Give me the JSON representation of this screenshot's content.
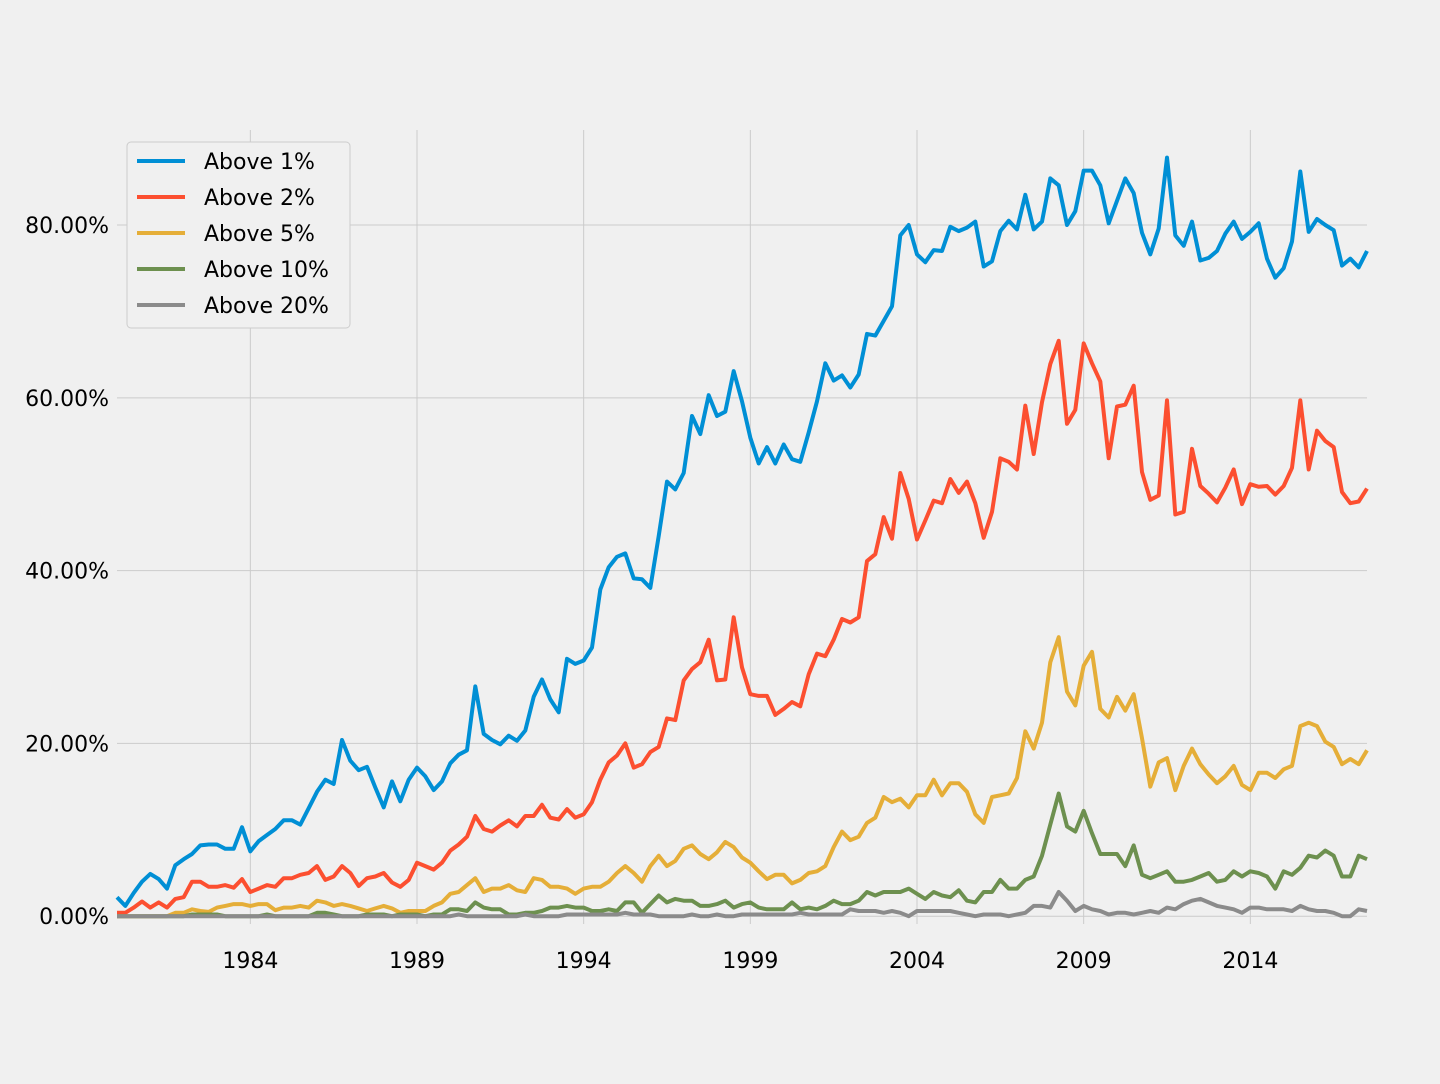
{
  "chart_data": {
    "type": "line",
    "title": "",
    "xlabel": "",
    "ylabel": "",
    "x_ticks": [
      "1984",
      "1989",
      "1994",
      "1999",
      "2004",
      "2009",
      "2014"
    ],
    "y_ticks": [
      "0.00%",
      "20.00%",
      "40.00%",
      "60.00%",
      "80.00%"
    ],
    "ylim": [
      -0.9,
      91
    ],
    "xlim": [
      1980,
      2017.5
    ],
    "x_start": 1980,
    "x_step": 0.25,
    "grid": true,
    "legend_position": "top-left",
    "series": [
      {
        "name": "Above 1%",
        "color": "#008fd5",
        "values": [
          2.2,
          1.2,
          2.7,
          4.0,
          4.9,
          4.3,
          3.2,
          5.9,
          6.6,
          7.2,
          8.2,
          8.3,
          8.3,
          7.8,
          7.8,
          10.3,
          7.5,
          8.7,
          9.4,
          10.1,
          11.1,
          11.1,
          10.6,
          12.5,
          14.4,
          15.8,
          15.3,
          20.4,
          18.0,
          16.9,
          17.3,
          14.9,
          12.6,
          15.6,
          13.3,
          15.8,
          17.2,
          16.2,
          14.6,
          15.6,
          17.7,
          18.7,
          19.2,
          26.6,
          21.1,
          20.4,
          19.9,
          20.9,
          20.3,
          21.5,
          25.4,
          27.4,
          25.1,
          23.6,
          29.8,
          29.2,
          29.6,
          31.1,
          37.8,
          40.4,
          41.6,
          42.0,
          39.1,
          39.0,
          38.0,
          44.0,
          50.3,
          49.4,
          51.3,
          57.9,
          55.8,
          60.3,
          57.9,
          58.4,
          63.1,
          59.6,
          55.4,
          52.4,
          54.3,
          52.4,
          54.6,
          52.9,
          52.6,
          56.0,
          59.6,
          64.0,
          62.0,
          62.6,
          61.2,
          62.7,
          67.4,
          67.2,
          68.9,
          70.6,
          78.8,
          80.0,
          76.6,
          75.7,
          77.1,
          77.0,
          79.8,
          79.3,
          79.7,
          80.4,
          75.2,
          75.8,
          79.3,
          80.5,
          79.5,
          83.5,
          79.5,
          80.4,
          85.4,
          84.6,
          80.0,
          81.6,
          86.3,
          86.3,
          84.6,
          80.2,
          82.8,
          85.4,
          83.7,
          79.1,
          76.6,
          79.6,
          87.8,
          78.8,
          77.6,
          80.4,
          75.9,
          76.2,
          77.0,
          79.0,
          80.4,
          78.4,
          79.2,
          80.2,
          76.1,
          73.9,
          75.0,
          78.1,
          86.2,
          79.2,
          80.7,
          80.0,
          79.4,
          75.3,
          76.1,
          75.1,
          77.0
        ]
      },
      {
        "name": "Above 2%",
        "color": "#fc4f30",
        "values": [
          0.4,
          0.4,
          1.0,
          1.7,
          1.0,
          1.6,
          1.0,
          2.0,
          2.2,
          4.0,
          4.0,
          3.4,
          3.4,
          3.6,
          3.3,
          4.3,
          2.8,
          3.2,
          3.6,
          3.4,
          4.4,
          4.4,
          4.8,
          5.0,
          5.8,
          4.2,
          4.6,
          5.8,
          5.0,
          3.5,
          4.4,
          4.6,
          5.0,
          3.9,
          3.4,
          4.2,
          6.2,
          5.8,
          5.4,
          6.2,
          7.6,
          8.3,
          9.2,
          11.6,
          10.1,
          9.8,
          10.5,
          11.1,
          10.4,
          11.6,
          11.6,
          12.9,
          11.4,
          11.2,
          12.4,
          11.4,
          11.8,
          13.2,
          15.8,
          17.8,
          18.6,
          20.0,
          17.2,
          17.6,
          19.0,
          19.6,
          22.9,
          22.7,
          27.3,
          28.6,
          29.4,
          32.0,
          27.3,
          27.4,
          34.6,
          28.8,
          25.7,
          25.5,
          25.5,
          23.3,
          24.0,
          24.8,
          24.3,
          28.0,
          30.4,
          30.1,
          32.0,
          34.4,
          34.0,
          34.6,
          41.1,
          41.9,
          46.2,
          43.7,
          51.3,
          48.3,
          43.6,
          45.8,
          48.1,
          47.8,
          50.6,
          49.0,
          50.3,
          47.8,
          43.8,
          46.8,
          53.0,
          52.6,
          51.7,
          59.1,
          53.5,
          59.5,
          63.9,
          66.6,
          57.0,
          58.6,
          66.3,
          64.0,
          61.9,
          53.0,
          59.0,
          59.2,
          61.4,
          51.4,
          48.2,
          48.7,
          59.7,
          46.5,
          46.8,
          54.1,
          49.8,
          48.9,
          47.9,
          49.6,
          51.7,
          47.7,
          50.0,
          49.7,
          49.8,
          48.8,
          49.8,
          51.9,
          59.7,
          51.7,
          56.2,
          55.0,
          54.3,
          49.1,
          47.8,
          48.0,
          49.5
        ]
      },
      {
        "name": "Above 5%",
        "color": "#e5ae38",
        "values": [
          0.0,
          0.0,
          0.0,
          0.0,
          0.0,
          0.0,
          0.0,
          0.4,
          0.4,
          0.8,
          0.6,
          0.5,
          1.0,
          1.2,
          1.4,
          1.4,
          1.2,
          1.4,
          1.4,
          0.7,
          1.0,
          1.0,
          1.2,
          1.0,
          1.8,
          1.6,
          1.2,
          1.4,
          1.2,
          0.9,
          0.6,
          0.9,
          1.2,
          0.9,
          0.4,
          0.6,
          0.6,
          0.6,
          1.2,
          1.6,
          2.6,
          2.8,
          3.6,
          4.4,
          2.8,
          3.2,
          3.2,
          3.6,
          3.0,
          2.8,
          4.4,
          4.2,
          3.4,
          3.4,
          3.2,
          2.6,
          3.2,
          3.4,
          3.4,
          4.0,
          5.0,
          5.8,
          5.0,
          4.0,
          5.8,
          7.0,
          5.8,
          6.4,
          7.8,
          8.2,
          7.2,
          6.6,
          7.4,
          8.6,
          8.0,
          6.8,
          6.2,
          5.2,
          4.3,
          4.8,
          4.8,
          3.8,
          4.2,
          5.0,
          5.2,
          5.8,
          8.0,
          9.8,
          8.8,
          9.2,
          10.8,
          11.4,
          13.8,
          13.2,
          13.6,
          12.6,
          14.0,
          14.0,
          15.8,
          14.0,
          15.4,
          15.4,
          14.4,
          11.8,
          10.8,
          13.8,
          14.0,
          14.2,
          16.0,
          21.4,
          19.4,
          22.4,
          29.4,
          32.3,
          26.0,
          24.4,
          29.0,
          30.6,
          24.0,
          23.0,
          25.4,
          23.8,
          25.7,
          20.6,
          15.0,
          17.8,
          18.3,
          14.6,
          17.4,
          19.4,
          17.6,
          16.4,
          15.4,
          16.2,
          17.4,
          15.2,
          14.6,
          16.6,
          16.6,
          16.0,
          17.0,
          17.4,
          22.0,
          22.4,
          22.0,
          20.2,
          19.6,
          17.6,
          18.2,
          17.6,
          19.2
        ]
      },
      {
        "name": "Above 10%",
        "color": "#6d904f",
        "values": [
          0.0,
          0.0,
          0.0,
          0.0,
          0.0,
          0.0,
          0.0,
          0.0,
          0.0,
          0.2,
          0.2,
          0.2,
          0.2,
          0.0,
          0.0,
          0.0,
          0.0,
          0.0,
          0.2,
          0.0,
          0.0,
          0.0,
          0.0,
          0.0,
          0.4,
          0.4,
          0.2,
          0.0,
          0.0,
          0.0,
          0.2,
          0.2,
          0.2,
          0.0,
          0.2,
          0.2,
          0.2,
          0.0,
          0.2,
          0.2,
          0.8,
          0.8,
          0.6,
          1.6,
          1.0,
          0.8,
          0.8,
          0.2,
          0.2,
          0.4,
          0.4,
          0.6,
          1.0,
          1.0,
          1.2,
          1.0,
          1.0,
          0.6,
          0.6,
          0.8,
          0.6,
          1.6,
          1.6,
          0.4,
          1.4,
          2.4,
          1.6,
          2.0,
          1.8,
          1.8,
          1.2,
          1.2,
          1.4,
          1.8,
          1.0,
          1.4,
          1.6,
          1.0,
          0.8,
          0.8,
          0.8,
          1.6,
          0.8,
          1.0,
          0.8,
          1.2,
          1.8,
          1.4,
          1.4,
          1.8,
          2.8,
          2.4,
          2.8,
          2.8,
          2.8,
          3.2,
          2.6,
          2.0,
          2.8,
          2.4,
          2.2,
          3.0,
          1.8,
          1.6,
          2.8,
          2.8,
          4.2,
          3.2,
          3.2,
          4.2,
          4.6,
          7.0,
          10.6,
          14.2,
          10.4,
          9.8,
          12.2,
          9.6,
          7.2,
          7.2,
          7.2,
          5.8,
          8.2,
          4.8,
          4.4,
          4.8,
          5.2,
          4.0,
          4.0,
          4.2,
          4.6,
          5.0,
          4.0,
          4.2,
          5.2,
          4.6,
          5.2,
          5.0,
          4.6,
          3.2,
          5.2,
          4.8,
          5.6,
          7.0,
          6.8,
          7.6,
          7.0,
          4.6,
          4.6,
          7.0,
          6.6
        ]
      },
      {
        "name": "Above 20%",
        "color": "#8b8b8b",
        "values": [
          0.0,
          0.0,
          0.0,
          0.0,
          0.0,
          0.0,
          0.0,
          0.0,
          0.0,
          0.0,
          0.0,
          0.0,
          0.0,
          0.0,
          0.0,
          0.0,
          0.0,
          0.0,
          0.0,
          0.0,
          0.0,
          0.0,
          0.0,
          0.0,
          0.0,
          0.0,
          0.0,
          0.0,
          0.0,
          0.0,
          0.0,
          0.0,
          0.0,
          0.0,
          0.0,
          0.0,
          0.0,
          0.0,
          0.0,
          0.0,
          0.0,
          0.2,
          0.0,
          0.0,
          0.0,
          0.0,
          0.0,
          0.0,
          0.0,
          0.2,
          0.0,
          0.0,
          0.0,
          0.0,
          0.2,
          0.2,
          0.2,
          0.2,
          0.2,
          0.2,
          0.2,
          0.4,
          0.2,
          0.2,
          0.2,
          0.0,
          0.0,
          0.0,
          0.0,
          0.2,
          0.0,
          0.0,
          0.2,
          0.0,
          0.0,
          0.2,
          0.2,
          0.2,
          0.2,
          0.2,
          0.2,
          0.2,
          0.4,
          0.2,
          0.2,
          0.2,
          0.2,
          0.2,
          0.8,
          0.6,
          0.6,
          0.6,
          0.4,
          0.6,
          0.4,
          0.0,
          0.6,
          0.6,
          0.6,
          0.6,
          0.6,
          0.4,
          0.2,
          0.0,
          0.2,
          0.2,
          0.2,
          0.0,
          0.2,
          0.4,
          1.2,
          1.2,
          1.0,
          2.8,
          1.8,
          0.6,
          1.2,
          0.8,
          0.6,
          0.2,
          0.4,
          0.4,
          0.2,
          0.4,
          0.6,
          0.4,
          1.0,
          0.8,
          1.4,
          1.8,
          2.0,
          1.6,
          1.2,
          1.0,
          0.8,
          0.4,
          1.0,
          1.0,
          0.8,
          0.8,
          0.8,
          0.6,
          1.2,
          0.8,
          0.6,
          0.6,
          0.4,
          0.0,
          0.0,
          0.8,
          0.6
        ]
      }
    ]
  }
}
